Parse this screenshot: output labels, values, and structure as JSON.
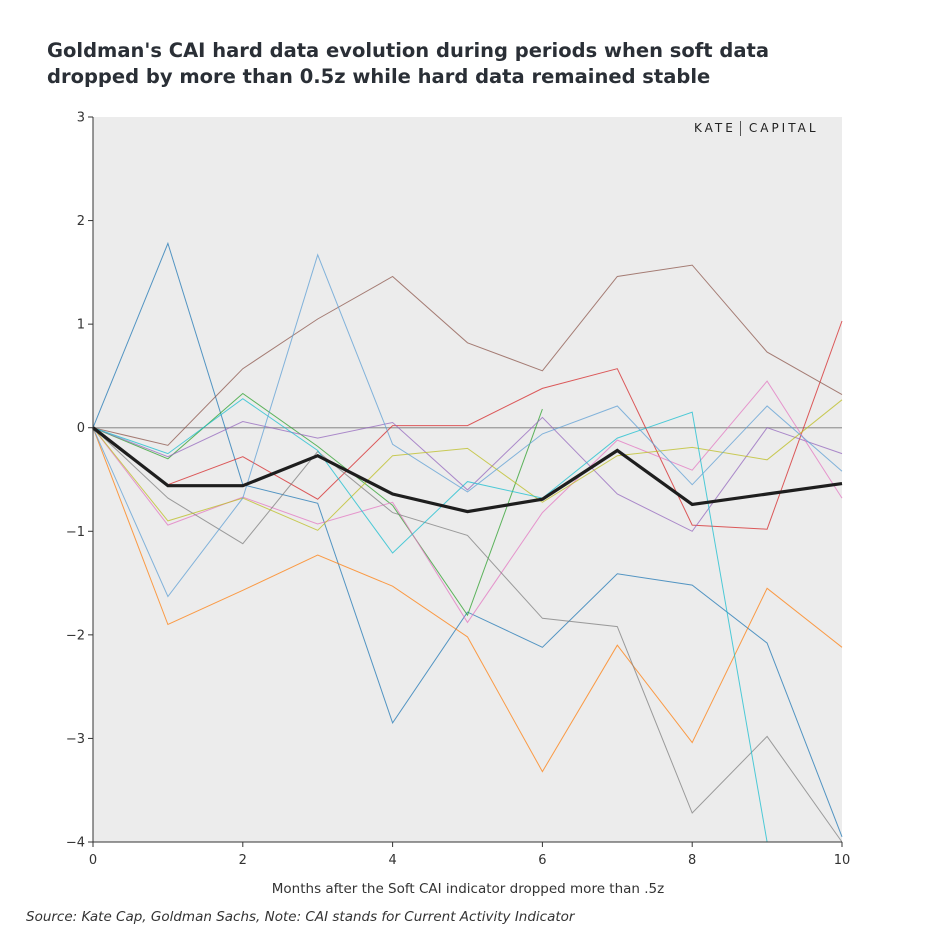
{
  "title": "Goldman's CAI hard data evolution during periods when soft data dropped by more than 0.5z while hard data remained stable",
  "brand": {
    "left": "KATE",
    "right": "CAPITAL"
  },
  "source": "Source: Kate Cap, Goldman Sachs, Note: CAI stands for Current Activity Indicator",
  "chart_data": {
    "type": "line",
    "xlabel": "Months after the Soft CAI indicator dropped more than .5z",
    "ylabel": "",
    "xlim": [
      0,
      10
    ],
    "ylim": [
      -4,
      3
    ],
    "x_ticks": [
      0,
      2,
      4,
      6,
      8,
      10
    ],
    "y_ticks": [
      3,
      2,
      1,
      0,
      -1,
      -2,
      -3,
      -4
    ],
    "y_tick_labels": [
      "3",
      "2",
      "1",
      "0",
      "−1",
      "−2",
      "−3",
      "−4"
    ],
    "x": [
      0,
      1,
      2,
      3,
      4,
      5,
      6,
      7,
      8,
      9,
      10
    ],
    "zero_line": true,
    "background": "#ececec",
    "series": [
      {
        "color": "#1f77b4",
        "values": [
          0,
          1.78,
          -0.55,
          -0.73,
          -2.85,
          -1.78,
          -2.12,
          -1.41,
          -1.52,
          -2.08,
          -3.95
        ]
      },
      {
        "color": "#ff7f0e",
        "values": [
          0,
          -1.9,
          -1.57,
          -1.23,
          -1.53,
          -2.02,
          -3.32,
          -2.1,
          -3.04,
          -1.55,
          -2.12
        ]
      },
      {
        "color": "#2ca02c",
        "values": [
          0,
          -0.3,
          0.33,
          -0.18,
          -0.75,
          -1.81,
          0.18,
          null,
          null,
          null,
          null
        ]
      },
      {
        "color": "#d62728",
        "values": [
          0,
          -0.55,
          -0.28,
          -0.69,
          0.02,
          0.02,
          0.38,
          0.57,
          -0.94,
          -0.98,
          1.03
        ]
      },
      {
        "color": "#9467bd",
        "values": [
          0,
          -0.28,
          0.06,
          -0.1,
          0.05,
          -0.6,
          0.1,
          -0.64,
          -1.0,
          0.0,
          -0.25
        ]
      },
      {
        "color": "#8c564b",
        "values": [
          0,
          -0.17,
          0.57,
          1.05,
          1.46,
          0.82,
          0.55,
          1.46,
          1.57,
          0.73,
          0.32
        ]
      },
      {
        "color": "#e377c2",
        "values": [
          0,
          -0.94,
          -0.67,
          -0.93,
          -0.72,
          -1.88,
          -0.82,
          -0.12,
          -0.41,
          0.45,
          -0.68
        ]
      },
      {
        "color": "#7f7f7f",
        "values": [
          0,
          -0.68,
          -1.12,
          -0.23,
          -0.82,
          -1.04,
          -1.84,
          -1.92,
          -3.72,
          -2.98,
          -4.2
        ]
      },
      {
        "color": "#bcbd22",
        "values": [
          0,
          -0.9,
          -0.68,
          -0.99,
          -0.27,
          -0.2,
          -0.72,
          -0.27,
          -0.19,
          -0.31,
          0.27
        ]
      },
      {
        "color": "#17becf",
        "values": [
          0,
          -0.25,
          0.28,
          -0.22,
          -1.21,
          -0.52,
          -0.68,
          -0.1,
          0.15,
          -4.2,
          null
        ]
      },
      {
        "color": "#5e9fd4",
        "values": [
          0,
          -1.63,
          -0.68,
          1.67,
          -0.16,
          -0.62,
          -0.06,
          0.21,
          -0.55,
          0.21,
          -0.42
        ]
      }
    ],
    "highlight": {
      "color": "#1e1e1e",
      "values": [
        0,
        -0.56,
        -0.56,
        -0.27,
        -0.64,
        -0.81,
        -0.69,
        -0.22,
        -0.74,
        -0.64,
        -0.54
      ]
    }
  }
}
